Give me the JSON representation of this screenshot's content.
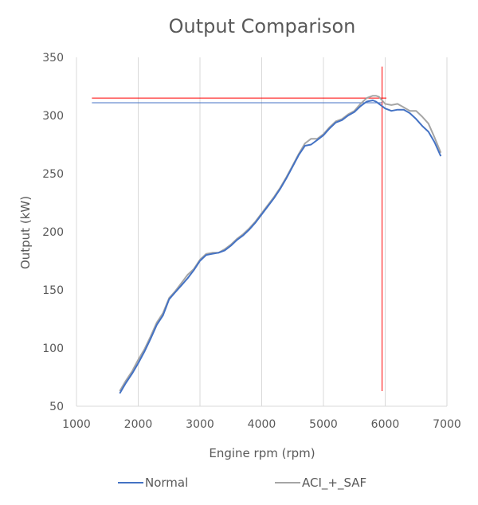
{
  "chart_data": {
    "type": "line",
    "title": "Output Comparison",
    "xlabel": "Engine rpm (rpm)",
    "ylabel": "Output (kW)",
    "xlim": [
      1000,
      7000
    ],
    "ylim": [
      50,
      350
    ],
    "xticks": [
      1000,
      2000,
      3000,
      4000,
      5000,
      6000,
      7000
    ],
    "yticks": [
      50,
      100,
      150,
      200,
      250,
      300,
      350
    ],
    "grid": "vertical",
    "legend": "bottom",
    "series": [
      {
        "name": "Normal",
        "color": "#4472C4",
        "x": [
          1700,
          1800,
          1900,
          2000,
          2100,
          2200,
          2300,
          2400,
          2500,
          2600,
          2700,
          2800,
          2900,
          3000,
          3100,
          3200,
          3300,
          3400,
          3500,
          3600,
          3700,
          3800,
          3900,
          4000,
          4100,
          4200,
          4300,
          4400,
          4500,
          4600,
          4700,
          4800,
          4900,
          5000,
          5100,
          5200,
          5300,
          5400,
          5500,
          5600,
          5700,
          5800,
          5850,
          5900,
          6000,
          6100,
          6200,
          6300,
          6400,
          6500,
          6600,
          6700,
          6800,
          6900
        ],
        "y": [
          61,
          70,
          78,
          87,
          97,
          108,
          120,
          128,
          142,
          148,
          154,
          160,
          167,
          175,
          180,
          181,
          182,
          184,
          188,
          193,
          197,
          202,
          208,
          215,
          222,
          229,
          237,
          246,
          256,
          266,
          274,
          275,
          279,
          283,
          289,
          294,
          296,
          300,
          303,
          308,
          312,
          313,
          312,
          310,
          306,
          304,
          305,
          305,
          302,
          297,
          291,
          286,
          277,
          265
        ]
      },
      {
        "name": "ACI_+_SAF",
        "color": "#A5A5A5",
        "x": [
          1700,
          1800,
          1900,
          2000,
          2100,
          2200,
          2300,
          2400,
          2500,
          2600,
          2700,
          2800,
          2900,
          3000,
          3100,
          3200,
          3300,
          3400,
          3500,
          3600,
          3700,
          3800,
          3900,
          4000,
          4100,
          4200,
          4300,
          4400,
          4500,
          4600,
          4700,
          4800,
          4900,
          5000,
          5100,
          5200,
          5300,
          5400,
          5500,
          5600,
          5700,
          5800,
          5850,
          5900,
          6000,
          6100,
          6200,
          6300,
          6400,
          6500,
          6600,
          6700,
          6800,
          6900
        ],
        "y": [
          63,
          72,
          80,
          90,
          99,
          110,
          122,
          130,
          143,
          149,
          156,
          163,
          168,
          176,
          181,
          182,
          182,
          185,
          189,
          194,
          198,
          203,
          209,
          216,
          223,
          230,
          238,
          247,
          257,
          267,
          276,
          280,
          280,
          284,
          290,
          295,
          297,
          301,
          304,
          310,
          315,
          317,
          317,
          316,
          310,
          309,
          310,
          307,
          304,
          304,
          299,
          293,
          281,
          268
        ]
      }
    ],
    "reference_lines": [
      {
        "color": "#FF0000",
        "kind": "horizontal",
        "y": 315,
        "x_from": 1250,
        "x_to": 6020
      },
      {
        "color": "#FF0000",
        "kind": "vertical",
        "x": 5950,
        "y_from": 63,
        "y_to": 342
      },
      {
        "color": "#4472C4",
        "kind": "horizontal",
        "y": 311,
        "x_from": 1250,
        "x_to": 5950
      }
    ]
  }
}
